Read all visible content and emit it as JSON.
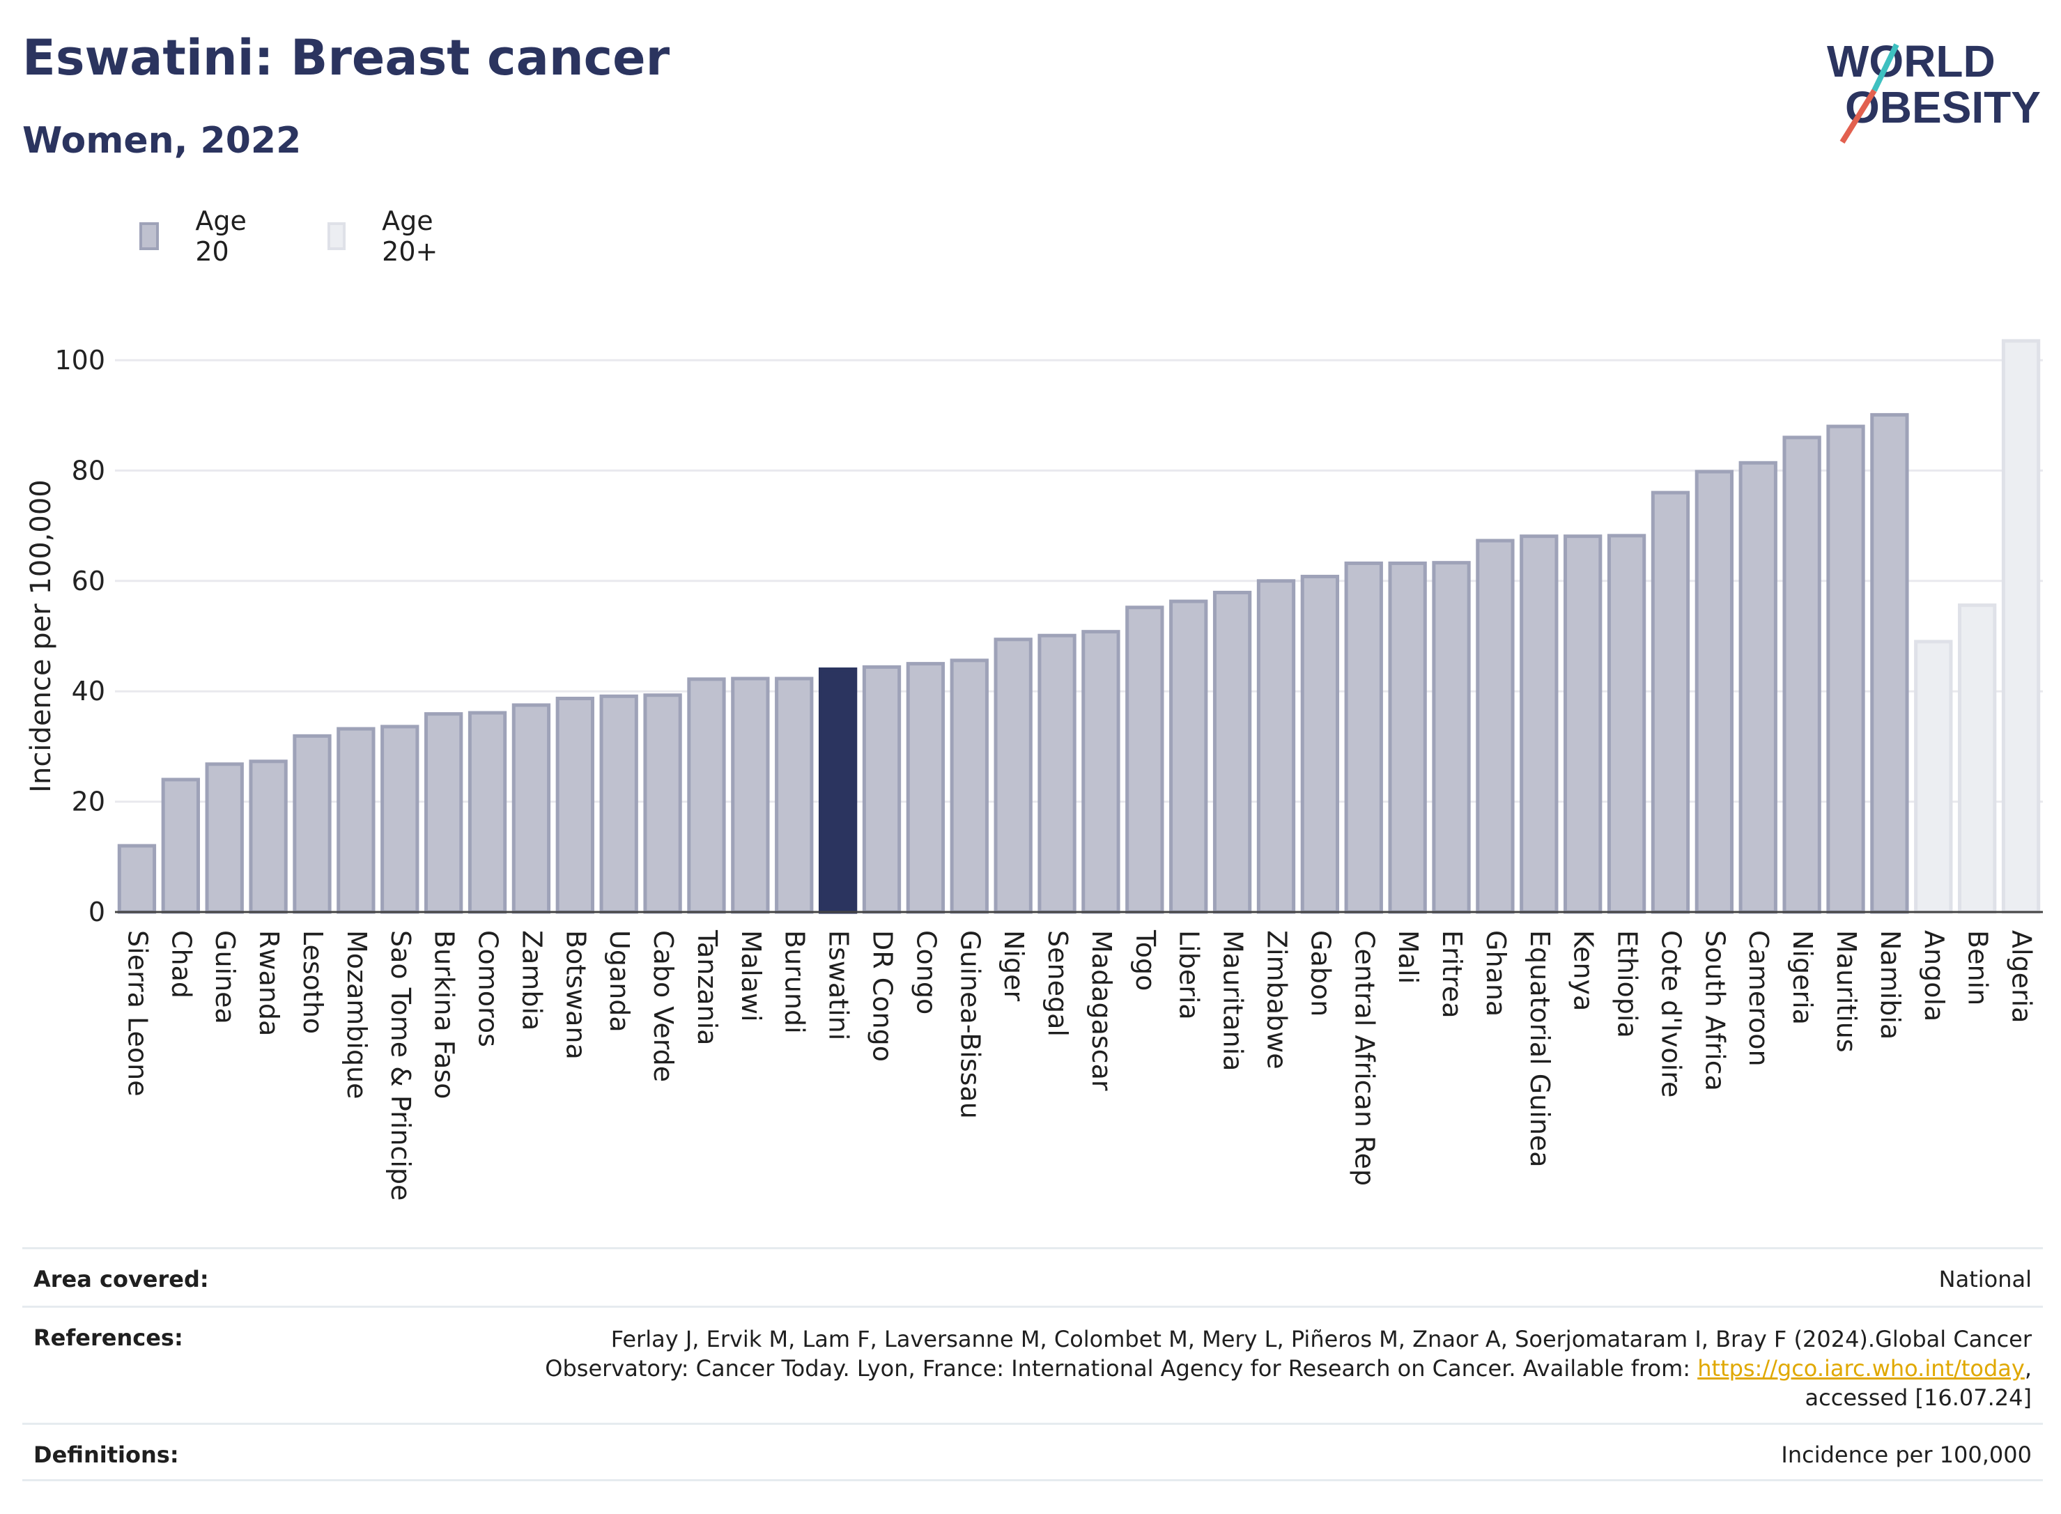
{
  "header": {
    "title": "Eswatini: Breast cancer",
    "subtitle": "Women, 2022",
    "logo_line1": "WORLD",
    "logo_line2": "OBESITY"
  },
  "legend": [
    {
      "label": "Age 20",
      "color": "#bfc1cf"
    },
    {
      "label": "Age 20+",
      "color": "#eceef2"
    }
  ],
  "chart_data": {
    "type": "bar",
    "ylabel": "Incidence per 100,000",
    "ylim": [
      0,
      110
    ],
    "yticks": [
      0,
      20,
      40,
      60,
      80,
      100
    ],
    "grid": true,
    "categories": [
      "Sierra Leone",
      "Chad",
      "Guinea",
      "Rwanda",
      "Lesotho",
      "Mozambique",
      "Sao Tome & Principe",
      "Burkina Faso",
      "Comoros",
      "Zambia",
      "Botswana",
      "Uganda",
      "Cabo Verde",
      "Tanzania",
      "Malawi",
      "Burundi",
      "Eswatini",
      "DR Congo",
      "Congo",
      "Guinea-Bissau",
      "Niger",
      "Senegal",
      "Madagascar",
      "Togo",
      "Liberia",
      "Mauritania",
      "Zimbabwe",
      "Gabon",
      "Central African Rep",
      "Mali",
      "Eritrea",
      "Ghana",
      "Equatorial Guinea",
      "Kenya",
      "Ethiopia",
      "Cote d'Ivoire",
      "South Africa",
      "Cameroon",
      "Nigeria",
      "Mauritius",
      "Namibia",
      "Angola",
      "Benin",
      "Algeria"
    ],
    "values": [
      12,
      24,
      26.8,
      27.3,
      31.9,
      33.2,
      33.6,
      35.9,
      36.1,
      37.5,
      38.7,
      39.1,
      39.3,
      42.2,
      42.3,
      42.3,
      44,
      44.4,
      45,
      45.6,
      49.4,
      50.1,
      50.8,
      55.2,
      56.3,
      57.9,
      60,
      60.8,
      63.2,
      63.2,
      63.3,
      67.3,
      68.1,
      68.1,
      68.2,
      76,
      79.8,
      81.4,
      86,
      88,
      90.1,
      49,
      55.6,
      103.5
    ],
    "series_group": [
      "Age 20",
      "Age 20",
      "Age 20",
      "Age 20",
      "Age 20",
      "Age 20",
      "Age 20",
      "Age 20",
      "Age 20",
      "Age 20",
      "Age 20",
      "Age 20",
      "Age 20",
      "Age 20",
      "Age 20",
      "Age 20",
      "Age 20",
      "Age 20",
      "Age 20",
      "Age 20",
      "Age 20",
      "Age 20",
      "Age 20",
      "Age 20",
      "Age 20",
      "Age 20",
      "Age 20",
      "Age 20",
      "Age 20",
      "Age 20",
      "Age 20",
      "Age 20",
      "Age 20",
      "Age 20",
      "Age 20",
      "Age 20",
      "Age 20",
      "Age 20",
      "Age 20",
      "Age 20",
      "Age 20",
      "Age 20+",
      "Age 20+",
      "Age 20+"
    ],
    "highlight": "Eswatini",
    "colors": {
      "age20_fill": "#bfc1cf",
      "age20_stroke": "#9ea2b8",
      "age20plus_fill": "#eceef2",
      "age20plus_stroke": "#dfe1e8",
      "highlight": "#2b345f"
    }
  },
  "footer": {
    "area_label": "Area covered:",
    "area_value": "National",
    "references_label": "References:",
    "references_text": "Ferlay J, Ervik M, Lam F, Laversanne M, Colombet M, Mery L, Piñeros M, Znaor A, Soerjomataram I, Bray F (2024).Global Cancer Observatory: Cancer Today. Lyon, France: International Agency for Research on Cancer. Available from: ",
    "references_link": "https://gco.iarc.who.int/today",
    "references_tail": ", accessed [16.07.24]",
    "definitions_label": "Definitions:",
    "definitions_value": "Incidence per 100,000"
  }
}
